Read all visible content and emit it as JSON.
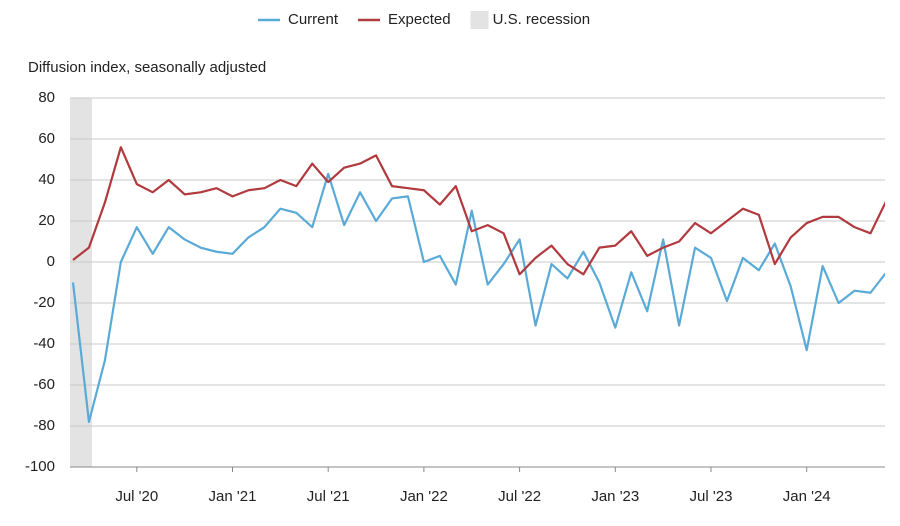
{
  "chart_data": {
    "type": "line",
    "y_axis_label": "Diffusion index, seasonally adjusted",
    "categories": [
      null,
      null,
      null,
      null,
      "Jul '20",
      null,
      null,
      null,
      null,
      null,
      "Jan '21",
      null,
      null,
      null,
      null,
      null,
      "Jul '21",
      null,
      null,
      null,
      null,
      null,
      "Jan '22",
      null,
      null,
      null,
      null,
      null,
      "Jul '22",
      null,
      null,
      null,
      null,
      null,
      "Jan '23",
      null,
      null,
      null,
      null,
      null,
      "Jul '23",
      null,
      null,
      null,
      null,
      null,
      "Jan '24",
      null,
      null,
      null,
      null,
      null
    ],
    "series": [
      {
        "name": "Current",
        "color": "#5aaad8",
        "values": [
          -10,
          -78,
          -48,
          0,
          17,
          4,
          17,
          11,
          7,
          5,
          4,
          12,
          17,
          26,
          24,
          17,
          43,
          18,
          34,
          20,
          31,
          32,
          0,
          3,
          -11,
          25,
          -11,
          -1,
          11,
          -31,
          -1,
          -8,
          5,
          -10,
          -32,
          -5,
          -24,
          11,
          -31,
          7,
          2,
          -19,
          2,
          -4,
          9,
          -12,
          -43,
          -2,
          -20,
          -14,
          -15,
          -5
        ]
      },
      {
        "name": "Expected",
        "color": "#b03a3e",
        "values": [
          1,
          7,
          29,
          56,
          38,
          34,
          40,
          33,
          34,
          36,
          32,
          35,
          36,
          40,
          37,
          48,
          39,
          46,
          48,
          52,
          37,
          36,
          35,
          28,
          37,
          15,
          18,
          14,
          -6,
          2,
          8,
          -1,
          -6,
          7,
          8,
          15,
          3,
          7,
          10,
          19,
          14,
          20,
          26,
          23,
          -1,
          12,
          19,
          22,
          22,
          17,
          14,
          30
        ]
      }
    ],
    "shaded_periods": [
      {
        "name": "U.S. recession",
        "color": "#e3e3e3",
        "range": [
          0,
          1
        ]
      }
    ],
    "ylim": [
      -100,
      80
    ],
    "yticks": [
      -100,
      -80,
      -60,
      -40,
      -20,
      0,
      20,
      40,
      60,
      80
    ],
    "grid": true
  }
}
